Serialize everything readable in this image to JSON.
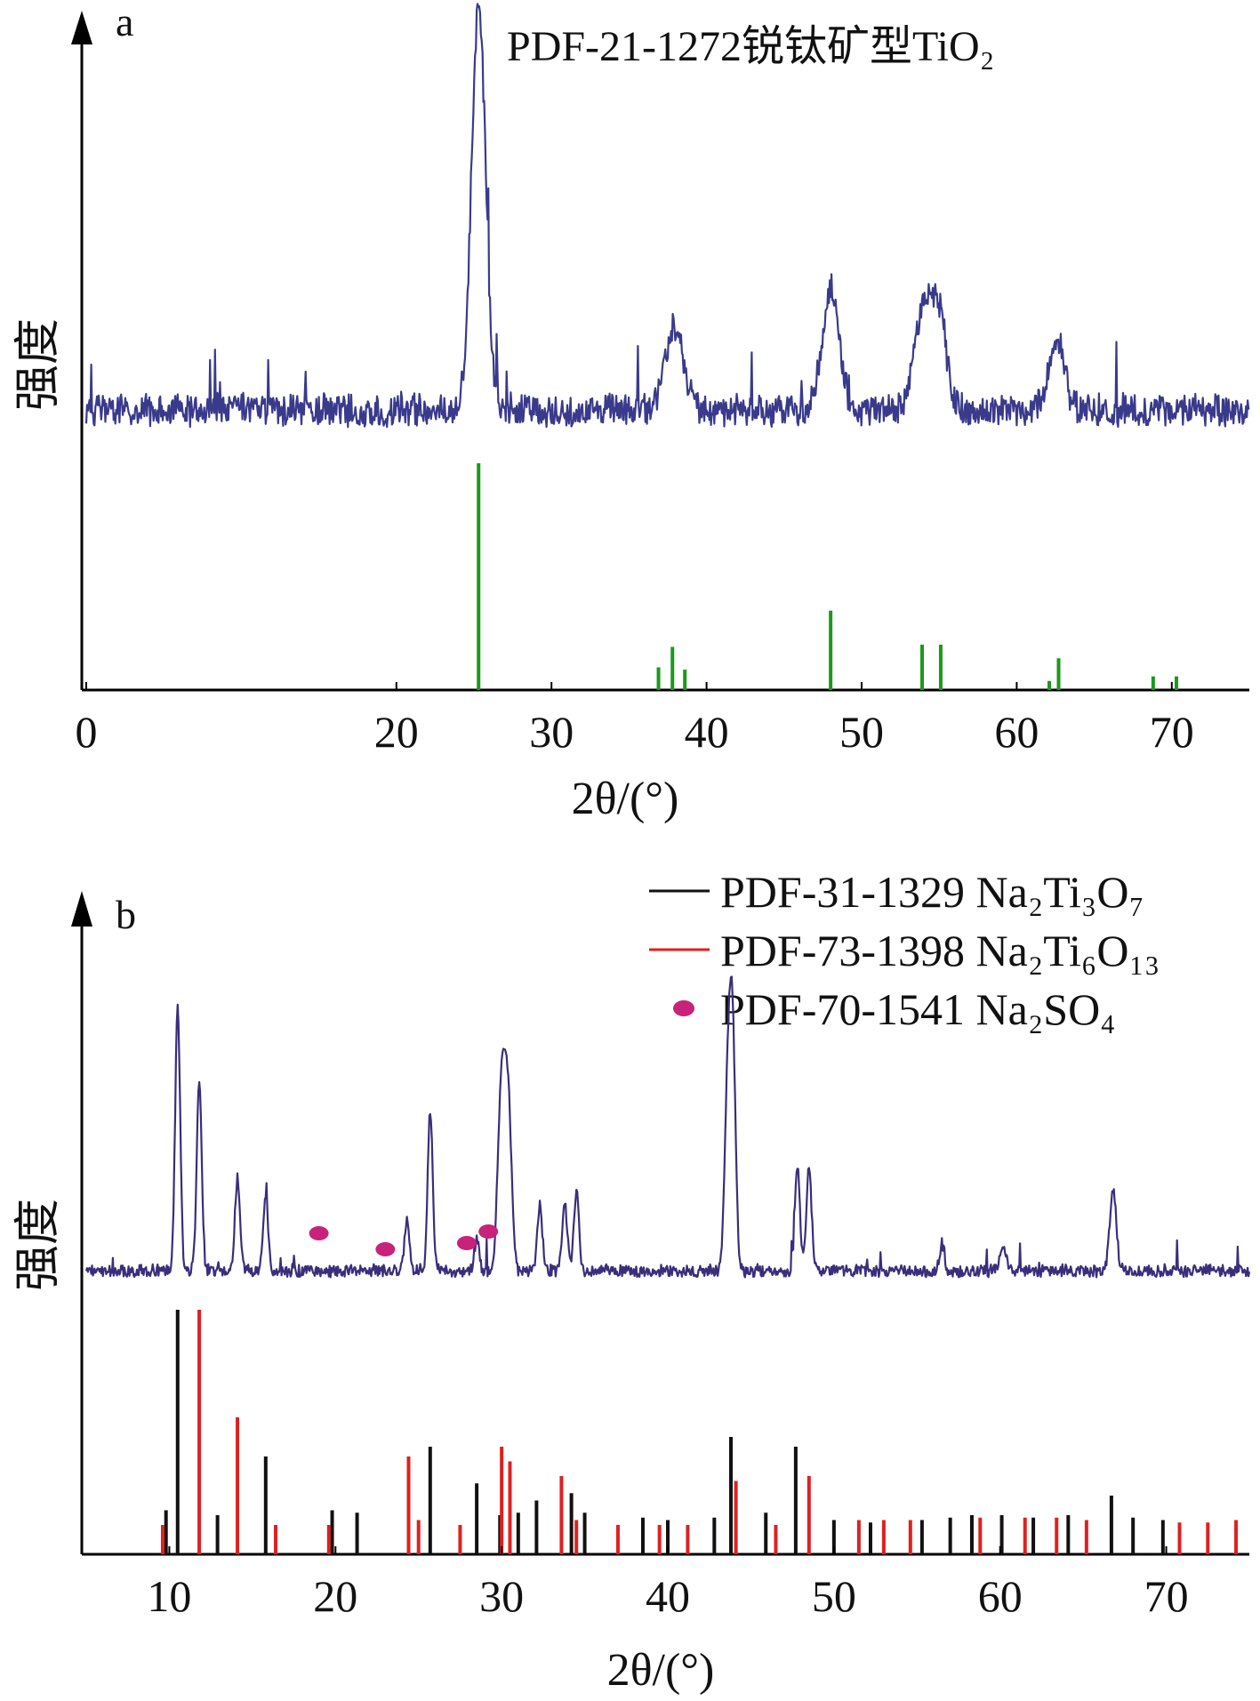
{
  "chart_data": [
    {
      "panel_label": "a",
      "type": "line",
      "title": "PDF-21-1272锐钛矿型TiO₂",
      "xlabel": "2θ/(°)",
      "ylabel": "强度",
      "xlim": [
        0,
        75
      ],
      "x_ticks": [
        "0",
        "20",
        "30",
        "40",
        "50",
        "60",
        "70"
      ],
      "x_tick_values": [
        0,
        20,
        30,
        40,
        50,
        60,
        70
      ],
      "colors": {
        "pattern": "#3a3a8c",
        "reference": "#1a9a1a"
      },
      "xrd_pattern": {
        "baseline": 0.08,
        "noise": 0.06,
        "peaks": [
          {
            "x": 25.3,
            "height": 1.0,
            "width": 0.45
          },
          {
            "x": 37.9,
            "height": 0.2,
            "width": 0.6
          },
          {
            "x": 48.0,
            "height": 0.3,
            "width": 0.55
          },
          {
            "x": 54.0,
            "height": 0.25,
            "width": 0.6
          },
          {
            "x": 55.0,
            "height": 0.2,
            "width": 0.5
          },
          {
            "x": 62.6,
            "height": 0.17,
            "width": 0.5
          }
        ]
      },
      "reference_series": [
        {
          "name": "PDF-21-1272锐钛矿型TiO₂",
          "color": "#1a9a1a",
          "peaks": [
            {
              "x": 25.3,
              "intensity": 100
            },
            {
              "x": 36.9,
              "intensity": 10
            },
            {
              "x": 37.8,
              "intensity": 19
            },
            {
              "x": 38.6,
              "intensity": 9
            },
            {
              "x": 48.0,
              "intensity": 35
            },
            {
              "x": 53.9,
              "intensity": 20
            },
            {
              "x": 55.1,
              "intensity": 20
            },
            {
              "x": 62.1,
              "intensity": 4
            },
            {
              "x": 62.7,
              "intensity": 14
            },
            {
              "x": 68.8,
              "intensity": 6
            },
            {
              "x": 70.3,
              "intensity": 6
            }
          ]
        }
      ]
    },
    {
      "panel_label": "b",
      "type": "line",
      "xlabel": "2θ/(°)",
      "ylabel": "强度",
      "xlim": [
        5,
        75
      ],
      "x_ticks": [
        "10",
        "20",
        "30",
        "40",
        "50",
        "60",
        "70"
      ],
      "x_tick_values": [
        10,
        20,
        30,
        40,
        50,
        60,
        70
      ],
      "legend_position": "top-right",
      "legend": [
        {
          "label": "PDF-31-1329 Na₂Ti₃O₇",
          "color": "#111111",
          "marker": "line"
        },
        {
          "label": "PDF-73-1398 Na₂Ti₆O₁₃",
          "color": "#e02020",
          "marker": "line"
        },
        {
          "label": "PDF-70-1541 Na₂SO₄",
          "color": "#c8227a",
          "marker": "dot"
        }
      ],
      "colors": {
        "pattern": "#3a2e7c",
        "na2so4_marker": "#c8227a"
      },
      "xrd_pattern": {
        "baseline": 0.05,
        "noise": 0.035,
        "peaks": [
          {
            "x": 10.5,
            "height": 1.0,
            "width": 0.15
          },
          {
            "x": 11.8,
            "height": 0.72,
            "width": 0.15
          },
          {
            "x": 14.1,
            "height": 0.35,
            "width": 0.15
          },
          {
            "x": 15.8,
            "height": 0.28,
            "width": 0.15
          },
          {
            "x": 24.3,
            "height": 0.2,
            "width": 0.15
          },
          {
            "x": 25.7,
            "height": 0.6,
            "width": 0.15
          },
          {
            "x": 28.5,
            "height": 0.12,
            "width": 0.15
          },
          {
            "x": 30.0,
            "height": 0.72,
            "width": 0.22
          },
          {
            "x": 30.4,
            "height": 0.6,
            "width": 0.2
          },
          {
            "x": 32.3,
            "height": 0.25,
            "width": 0.15
          },
          {
            "x": 33.8,
            "height": 0.25,
            "width": 0.15
          },
          {
            "x": 34.5,
            "height": 0.3,
            "width": 0.15
          },
          {
            "x": 43.6,
            "height": 0.65,
            "width": 0.18
          },
          {
            "x": 43.9,
            "height": 0.88,
            "width": 0.18
          },
          {
            "x": 47.8,
            "height": 0.4,
            "width": 0.15
          },
          {
            "x": 48.5,
            "height": 0.4,
            "width": 0.15
          },
          {
            "x": 56.5,
            "height": 0.1,
            "width": 0.15
          },
          {
            "x": 60.2,
            "height": 0.1,
            "width": 0.2
          },
          {
            "x": 66.8,
            "height": 0.3,
            "width": 0.2
          }
        ]
      },
      "na2so4_markers": [
        19.0,
        23.0,
        27.9,
        29.2
      ],
      "reference_series": [
        {
          "name": "PDF-31-1329 Na₂Ti₃O₇",
          "color": "#111111",
          "peaks": [
            {
              "x": 10.5,
              "intensity": 100
            },
            {
              "x": 15.8,
              "intensity": 40
            },
            {
              "x": 25.7,
              "intensity": 44
            },
            {
              "x": 28.5,
              "intensity": 29
            },
            {
              "x": 29.9,
              "intensity": 16
            },
            {
              "x": 31.0,
              "intensity": 17
            },
            {
              "x": 32.1,
              "intensity": 22
            },
            {
              "x": 34.2,
              "intensity": 25
            },
            {
              "x": 35.0,
              "intensity": 17
            },
            {
              "x": 43.8,
              "intensity": 48
            },
            {
              "x": 47.7,
              "intensity": 44
            },
            {
              "x": 9.8,
              "intensity": 18
            },
            {
              "x": 12.9,
              "intensity": 16
            },
            {
              "x": 19.8,
              "intensity": 18
            },
            {
              "x": 21.3,
              "intensity": 17
            },
            {
              "x": 38.5,
              "intensity": 15
            },
            {
              "x": 40.0,
              "intensity": 14
            },
            {
              "x": 42.8,
              "intensity": 15
            },
            {
              "x": 45.9,
              "intensity": 17
            },
            {
              "x": 50.0,
              "intensity": 14
            },
            {
              "x": 52.2,
              "intensity": 13
            },
            {
              "x": 55.3,
              "intensity": 14
            },
            {
              "x": 57.0,
              "intensity": 15
            },
            {
              "x": 58.3,
              "intensity": 16
            },
            {
              "x": 60.1,
              "intensity": 16
            },
            {
              "x": 62.0,
              "intensity": 15
            },
            {
              "x": 64.1,
              "intensity": 16
            },
            {
              "x": 66.7,
              "intensity": 24
            },
            {
              "x": 68.0,
              "intensity": 15
            },
            {
              "x": 69.8,
              "intensity": 14
            }
          ]
        },
        {
          "name": "PDF-73-1398 Na₂Ti₆O₁₃",
          "color": "#e02020",
          "peaks": [
            {
              "x": 11.8,
              "intensity": 100
            },
            {
              "x": 14.1,
              "intensity": 56
            },
            {
              "x": 24.4,
              "intensity": 40
            },
            {
              "x": 30.0,
              "intensity": 44
            },
            {
              "x": 30.5,
              "intensity": 38
            },
            {
              "x": 33.6,
              "intensity": 32
            },
            {
              "x": 48.5,
              "intensity": 32
            },
            {
              "x": 44.1,
              "intensity": 30
            },
            {
              "x": 9.6,
              "intensity": 12
            },
            {
              "x": 16.4,
              "intensity": 12
            },
            {
              "x": 19.6,
              "intensity": 12
            },
            {
              "x": 25.0,
              "intensity": 14
            },
            {
              "x": 27.5,
              "intensity": 12
            },
            {
              "x": 34.5,
              "intensity": 14
            },
            {
              "x": 37.0,
              "intensity": 12
            },
            {
              "x": 39.5,
              "intensity": 12
            },
            {
              "x": 41.2,
              "intensity": 12
            },
            {
              "x": 46.5,
              "intensity": 12
            },
            {
              "x": 51.5,
              "intensity": 14
            },
            {
              "x": 53.0,
              "intensity": 14
            },
            {
              "x": 54.6,
              "intensity": 14
            },
            {
              "x": 58.8,
              "intensity": 15
            },
            {
              "x": 61.5,
              "intensity": 15
            },
            {
              "x": 63.4,
              "intensity": 15
            },
            {
              "x": 65.2,
              "intensity": 14
            },
            {
              "x": 70.8,
              "intensity": 13
            },
            {
              "x": 72.5,
              "intensity": 13
            },
            {
              "x": 74.2,
              "intensity": 14
            }
          ]
        }
      ]
    }
  ]
}
